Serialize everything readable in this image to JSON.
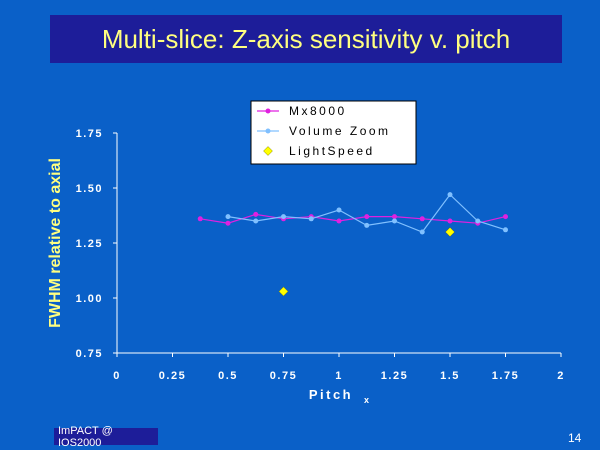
{
  "slide": {
    "title": "Multi-slice:  Z-axis sensitivity v. pitch",
    "footer": "ImPACT @ IOS2000",
    "page_number": "14"
  },
  "colors": {
    "background": "#0a60c8",
    "title_bar": "#1d1d99",
    "title_text": "#ffff80",
    "axis_title": "#ffff80",
    "mx8000": "#e020e0",
    "volume_zoom": "#80c0ff",
    "lightspeed": "#ffff00"
  },
  "chart_data": {
    "type": "line",
    "xlabel": "Pitch",
    "xlabel_subscript": "x",
    "ylabel": "FWHM relative to axial",
    "xlim": [
      0,
      2
    ],
    "ylim": [
      0.75,
      1.75
    ],
    "x_ticks": [
      "0",
      "0.25",
      "0.5",
      "0.75",
      "1",
      "1.25",
      "1.5",
      "1.75",
      "2"
    ],
    "y_ticks": [
      "0.75",
      "1.00",
      "1.25",
      "1.50",
      "1.75"
    ],
    "legend_position": "top",
    "grid": false,
    "series": [
      {
        "name": "Mx8000",
        "marker": "circle",
        "color": "#e020e0",
        "x": [
          0.375,
          0.5,
          0.625,
          0.75,
          0.875,
          1.0,
          1.125,
          1.25,
          1.375,
          1.5,
          1.625,
          1.75
        ],
        "y": [
          1.36,
          1.34,
          1.38,
          1.36,
          1.37,
          1.35,
          1.37,
          1.37,
          1.36,
          1.35,
          1.34,
          1.37
        ]
      },
      {
        "name": "Volume Zoom",
        "marker": "circle",
        "color": "#80c0ff",
        "x": [
          0.5,
          0.625,
          0.75,
          0.875,
          1.0,
          1.125,
          1.25,
          1.375,
          1.5,
          1.625,
          1.75
        ],
        "y": [
          1.37,
          1.35,
          1.37,
          1.36,
          1.4,
          1.33,
          1.35,
          1.3,
          1.47,
          1.35,
          1.31
        ]
      },
      {
        "name": "LightSpeed",
        "marker": "diamond",
        "color": "#ffff00",
        "line": false,
        "x": [
          0.75,
          1.5
        ],
        "y": [
          1.03,
          1.3
        ]
      }
    ]
  }
}
